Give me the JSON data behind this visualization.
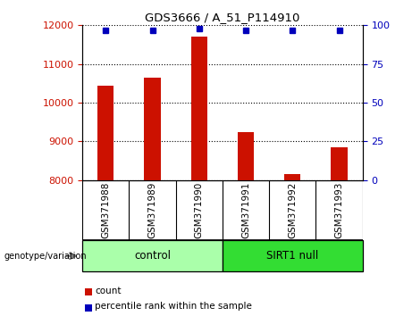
{
  "title": "GDS3666 / A_51_P114910",
  "categories": [
    "GSM371988",
    "GSM371989",
    "GSM371990",
    "GSM371991",
    "GSM371992",
    "GSM371993"
  ],
  "counts": [
    10450,
    10650,
    11700,
    9250,
    8150,
    8850
  ],
  "percentiles": [
    97,
    97,
    98,
    97,
    97,
    97
  ],
  "ylim_left": [
    8000,
    12000
  ],
  "ylim_right": [
    0,
    100
  ],
  "yticks_left": [
    8000,
    9000,
    10000,
    11000,
    12000
  ],
  "yticks_right": [
    0,
    25,
    50,
    75,
    100
  ],
  "bar_color": "#cc1100",
  "dot_color": "#0000bb",
  "groups": [
    {
      "label": "control",
      "indices": [
        0,
        1,
        2
      ],
      "color": "#aaffaa"
    },
    {
      "label": "SIRT1 null",
      "indices": [
        3,
        4,
        5
      ],
      "color": "#33dd33"
    }
  ],
  "group_label": "genotype/variation",
  "legend_count_label": "count",
  "legend_percentile_label": "percentile rank within the sample",
  "bg_color": "#ffffff",
  "plot_bg": "#ffffff",
  "tick_label_color_left": "#cc1100",
  "tick_label_color_right": "#0000bb",
  "col_bg_color": "#d0d0d0",
  "bar_width": 0.35
}
